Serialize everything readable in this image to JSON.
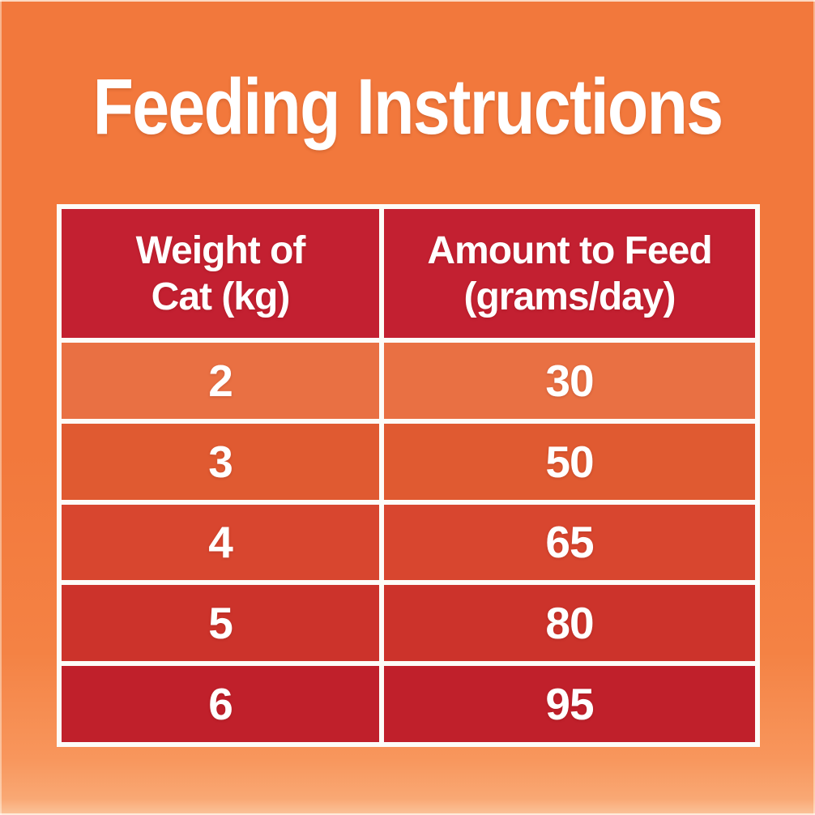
{
  "title": "Feeding Instructions",
  "table": {
    "header": {
      "col1_line1": "Weight of",
      "col1_line2": "Cat (kg)",
      "col2_line1": "Amount to Feed",
      "col2_line2": "(grams/day)"
    },
    "rows": [
      {
        "weight": "2",
        "amount": "30"
      },
      {
        "weight": "3",
        "amount": "50"
      },
      {
        "weight": "4",
        "amount": "65"
      },
      {
        "weight": "5",
        "amount": "80"
      },
      {
        "weight": "6",
        "amount": "95"
      }
    ]
  },
  "colors": {
    "background_orange": "#F2783C",
    "background_bottom_light": "#F9A874",
    "header_red": "#C32031",
    "row_colors": [
      "#E97043",
      "#E05A31",
      "#D8462F",
      "#CC332B",
      "#C0202B"
    ],
    "grid_white": "#FDFCF8",
    "text_white": "#FFFFFF"
  },
  "chart_data": {
    "type": "table",
    "title": "Feeding Instructions",
    "columns": [
      "Weight of Cat (kg)",
      "Amount to Feed (grams/day)"
    ],
    "rows": [
      [
        2,
        30
      ],
      [
        3,
        50
      ],
      [
        4,
        65
      ],
      [
        5,
        80
      ],
      [
        6,
        95
      ]
    ]
  }
}
